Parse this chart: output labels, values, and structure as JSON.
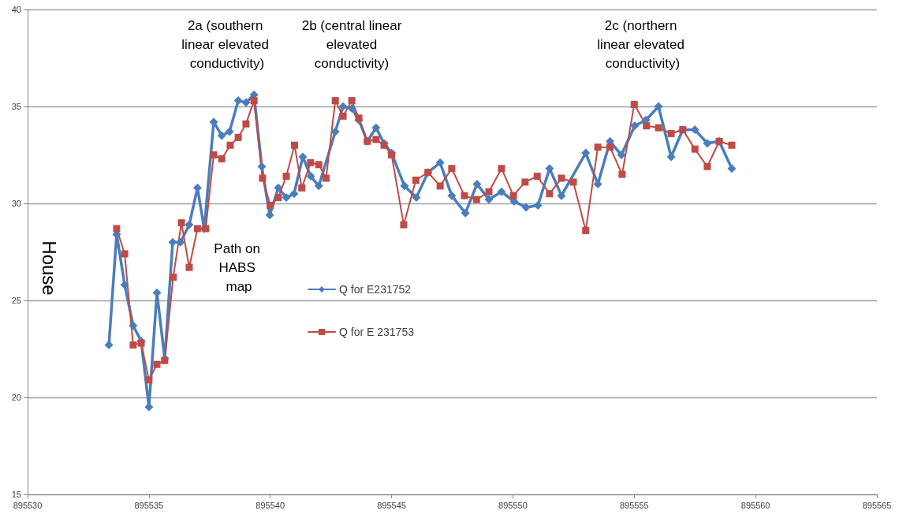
{
  "chart_data": {
    "type": "line",
    "annotations": [
      "2a (southern linear elevated conductivity)",
      "2b (central linear elevated conductivity)",
      "2c (northern linear elevated conductivity)",
      "Path on HABS map",
      "House"
    ],
    "series": [
      {
        "name": "Q for E231752",
        "color": "#4a7ebb",
        "marker": "diamond",
        "x": [
          895533.35,
          895533.67,
          895534.0,
          895534.35,
          895534.68,
          895535.0,
          895535.33,
          895535.65,
          895535.98,
          895536.3,
          895536.66,
          895537.0,
          895537.28,
          895537.67,
          895538.0,
          895538.32,
          895538.68,
          895539.0,
          895539.33,
          895539.65,
          895539.98,
          895540.33,
          895540.66,
          895540.98,
          895541.34,
          895541.67,
          895542.0,
          895542.68,
          895543.0,
          895543.36,
          895543.65,
          895544.0,
          895544.36,
          895544.69,
          895545.0,
          895545.53,
          895546.02,
          895546.5,
          895547.0,
          895547.48,
          895548.04,
          895548.52,
          895549.01,
          895549.53,
          895550.05,
          895550.54,
          895551.03,
          895551.51,
          895552.0,
          895553.0,
          895553.5,
          895554.0,
          895554.47,
          895555.02,
          895555.48,
          895556.0,
          895556.52,
          895557.0,
          895557.5,
          895558.01,
          895558.5,
          895559.02
        ],
        "values": [
          22.7,
          28.4,
          25.8,
          23.7,
          22.9,
          19.5,
          25.4,
          22.0,
          28.0,
          28.0,
          28.9,
          30.8,
          28.7,
          34.2,
          33.5,
          33.7,
          35.3,
          35.2,
          35.6,
          31.9,
          29.4,
          30.8,
          30.3,
          30.5,
          32.4,
          31.4,
          30.9,
          33.7,
          35.0,
          34.9,
          34.3,
          33.2,
          33.9,
          33.1,
          32.6,
          30.9,
          30.3,
          31.6,
          32.1,
          30.4,
          29.5,
          31.0,
          30.2,
          30.6,
          30.1,
          29.8,
          29.9,
          31.8,
          30.4,
          32.6,
          31.0,
          33.2,
          32.5,
          34.0,
          34.3,
          35.0,
          32.4,
          33.8,
          33.8,
          33.1,
          33.2,
          31.8
        ]
      },
      {
        "name": "Q for E 231753",
        "color": "#be4b48",
        "marker": "square",
        "x": [
          895533.67,
          895534.0,
          895534.35,
          895534.68,
          895535.0,
          895535.33,
          895535.65,
          895536.0,
          895536.34,
          895536.66,
          895537.0,
          895537.34,
          895537.67,
          895538.0,
          895538.35,
          895538.68,
          895539.0,
          895539.33,
          895539.68,
          895540.0,
          895540.33,
          895540.66,
          895541.0,
          895541.3,
          895541.66,
          895542.0,
          895542.3,
          895542.68,
          895543.0,
          895543.36,
          895543.65,
          895544.0,
          895544.36,
          895544.69,
          895545.0,
          895545.5,
          895546.0,
          895546.5,
          895547.0,
          895547.48,
          895548.0,
          895548.5,
          895549.01,
          895549.53,
          895550.02,
          895550.5,
          895551.0,
          895551.51,
          895552.0,
          895552.49,
          895553.0,
          895553.5,
          895554.0,
          895554.5,
          895555.0,
          895555.5,
          895556.0,
          895556.52,
          895557.0,
          895557.5,
          895558.01,
          895558.5,
          895559.02
        ],
        "values": [
          28.7,
          27.4,
          22.7,
          22.8,
          20.9,
          21.7,
          21.9,
          26.2,
          29.0,
          26.7,
          28.7,
          28.7,
          32.5,
          32.3,
          33.0,
          33.4,
          34.1,
          35.3,
          31.3,
          29.9,
          30.3,
          31.4,
          33.0,
          30.8,
          32.1,
          32.0,
          31.3,
          35.3,
          34.5,
          35.3,
          34.4,
          33.2,
          33.3,
          33.0,
          32.5,
          28.9,
          31.2,
          31.6,
          30.9,
          31.8,
          30.4,
          30.2,
          30.6,
          31.8,
          30.4,
          31.1,
          31.4,
          30.5,
          31.3,
          31.1,
          28.6,
          32.9,
          32.9,
          31.5,
          35.1,
          34.0,
          33.9,
          33.6,
          33.8,
          32.8,
          31.9,
          33.2,
          33.0
        ]
      }
    ],
    "xlim": [
      895530,
      895565
    ],
    "xticks": [
      895530,
      895535,
      895540,
      895545,
      895550,
      895555,
      895560,
      895565
    ],
    "ylim": [
      15,
      40
    ],
    "yticks": [
      15,
      20,
      25,
      30,
      35,
      40
    ],
    "grid": "y",
    "legend": "left",
    "line_style": "solid"
  }
}
